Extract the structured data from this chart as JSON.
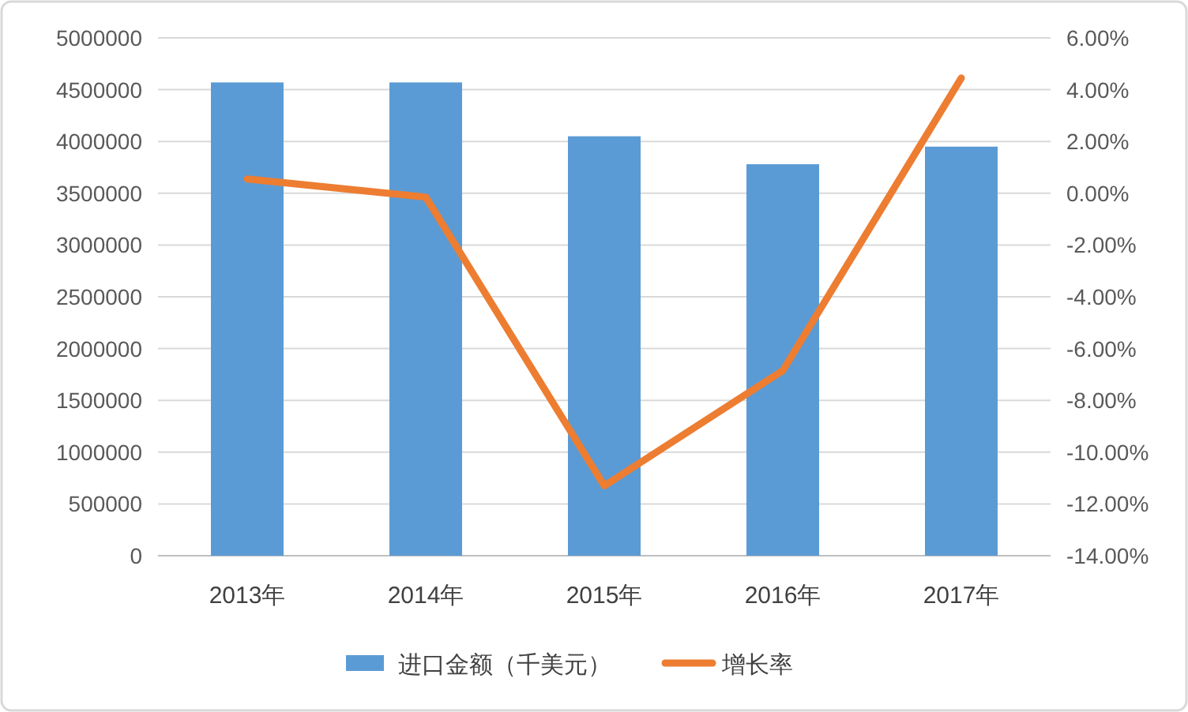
{
  "chart_data": {
    "type": "bar",
    "categories": [
      "2013年",
      "2014年",
      "2015年",
      "2016年",
      "2017年"
    ],
    "series": [
      {
        "name": "进口金额（千美元）",
        "color": "#5b9bd5",
        "values": [
          4570000,
          4570000,
          4050000,
          3780000,
          3950000
        ]
      },
      {
        "name": "增长率",
        "color": "#ed7d31",
        "type": "line",
        "axis": "y2",
        "values": [
          0.55,
          -0.15,
          -11.3,
          -6.85,
          4.45
        ]
      }
    ],
    "ylim": [
      0,
      5000000
    ],
    "yticks": [
      0,
      500000,
      1000000,
      1500000,
      2000000,
      2500000,
      3000000,
      3500000,
      4000000,
      4500000,
      5000000
    ],
    "y2lim": [
      -14,
      6
    ],
    "y2ticks": [
      {
        "value": -14,
        "label": "-14.00%"
      },
      {
        "value": -12,
        "label": "-12.00%"
      },
      {
        "value": -10,
        "label": "-10.00%"
      },
      {
        "value": -8,
        "label": "-8.00%"
      },
      {
        "value": -6,
        "label": "-6.00%"
      },
      {
        "value": -4,
        "label": "-4.00%"
      },
      {
        "value": -2,
        "label": "-2.00%"
      },
      {
        "value": 0,
        "label": "0.00%"
      },
      {
        "value": 2,
        "label": "2.00%"
      },
      {
        "value": 4,
        "label": "4.00%"
      },
      {
        "value": 6,
        "label": "6.00%"
      }
    ],
    "grid": "y",
    "legend": "bottom",
    "marker": "none"
  }
}
